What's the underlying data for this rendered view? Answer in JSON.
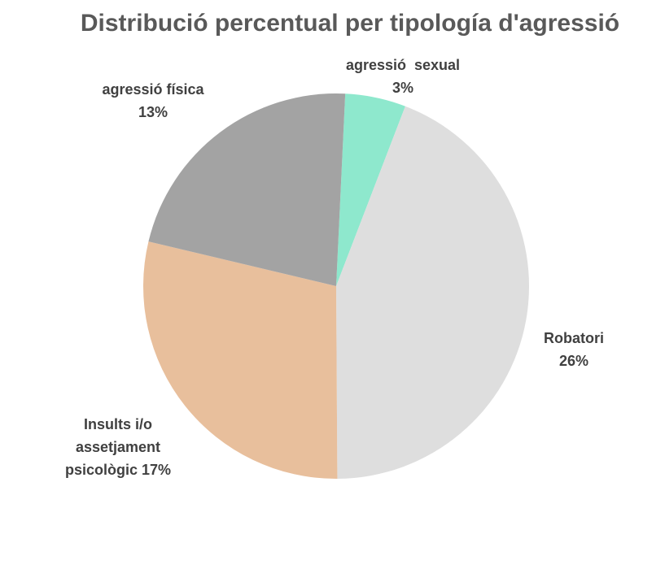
{
  "chart_data": {
    "type": "pie",
    "title": "Distribució percentual per tipología d'agressió",
    "categories": [
      "agressió  sexual",
      "Robatori",
      "Insults i/o assetjament psicològic",
      "agressió física"
    ],
    "values": [
      3,
      26,
      17,
      13
    ],
    "value_labels": [
      "3%",
      "26%",
      "17%",
      "13%"
    ],
    "colors": [
      "#8ee8cd",
      "#dedede",
      "#e8bf9c",
      "#a3a3a3"
    ]
  }
}
